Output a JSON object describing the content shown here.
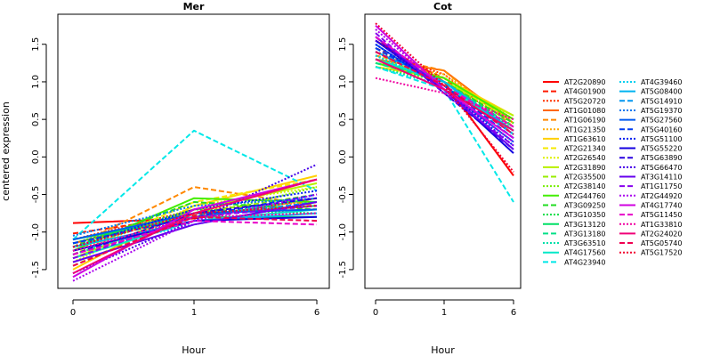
{
  "chart_data": [
    {
      "type": "line",
      "title": "Mer",
      "xlabel": "Hour",
      "ylabel": "centered expression",
      "categories": [
        "0",
        "1",
        "6"
      ],
      "ylim": [
        -1.75,
        1.9
      ],
      "yticks": [
        "-1.5",
        "-1.0",
        "-0.5",
        "0.0",
        "0.5",
        "1.0",
        "1.5"
      ],
      "series": [
        {
          "name": "AT2G20890",
          "values": [
            -0.88,
            -0.82,
            -0.55
          ],
          "color": "#FF0000",
          "dash": "solid"
        },
        {
          "name": "AT4G01900",
          "values": [
            -1.02,
            -0.78,
            -0.65
          ],
          "color": "#FF1A00",
          "dash": "dashed"
        },
        {
          "name": "AT5G20720",
          "values": [
            -1.1,
            -0.7,
            -0.6
          ],
          "color": "#FF3300",
          "dash": "dotted"
        },
        {
          "name": "AT1G01080",
          "values": [
            -1.15,
            -0.75,
            -0.7
          ],
          "color": "#FF6600",
          "dash": "solid"
        },
        {
          "name": "AT1G06190",
          "values": [
            -1.2,
            -0.4,
            -0.65
          ],
          "color": "#FF8800",
          "dash": "dashed"
        },
        {
          "name": "AT1G21350",
          "values": [
            -1.25,
            -0.7,
            -0.6
          ],
          "color": "#FFAA00",
          "dash": "dotted"
        },
        {
          "name": "AT1G63610",
          "values": [
            -1.5,
            -0.65,
            -0.25
          ],
          "color": "#FFD000",
          "dash": "solid"
        },
        {
          "name": "AT2G21340",
          "values": [
            -1.3,
            -0.6,
            -0.3
          ],
          "color": "#F5E800",
          "dash": "dashed"
        },
        {
          "name": "AT2G26540",
          "values": [
            -1.4,
            -0.65,
            -0.4
          ],
          "color": "#DDF000",
          "dash": "dotted"
        },
        {
          "name": "AT2G31890",
          "values": [
            -1.35,
            -0.7,
            -0.35
          ],
          "color": "#B8F000",
          "dash": "solid"
        },
        {
          "name": "AT2G35500",
          "values": [
            -1.45,
            -0.75,
            -0.5
          ],
          "color": "#99EE00",
          "dash": "dashed"
        },
        {
          "name": "AT2G38140",
          "values": [
            -1.3,
            -0.8,
            -0.4
          ],
          "color": "#77EE00",
          "dash": "dotted"
        },
        {
          "name": "AT2G44760",
          "values": [
            -1.25,
            -0.55,
            -0.6
          ],
          "color": "#44EE00",
          "dash": "solid"
        },
        {
          "name": "AT3G09250",
          "values": [
            -1.2,
            -0.6,
            -0.7
          ],
          "color": "#22DD22",
          "dash": "dashed"
        },
        {
          "name": "AT3G10350",
          "values": [
            -1.15,
            -0.7,
            -0.75
          ],
          "color": "#11DD44",
          "dash": "dotted"
        },
        {
          "name": "AT3G13120",
          "values": [
            -1.1,
            -0.8,
            -0.8
          ],
          "color": "#00E066",
          "dash": "solid"
        },
        {
          "name": "AT3G13180",
          "values": [
            -1.2,
            -0.75,
            -0.65
          ],
          "color": "#00E088",
          "dash": "dashed"
        },
        {
          "name": "AT3G63510",
          "values": [
            -1.3,
            -0.8,
            -0.55
          ],
          "color": "#00E0AA",
          "dash": "dotted"
        },
        {
          "name": "AT4G17560",
          "values": [
            -1.35,
            -0.85,
            -0.7
          ],
          "color": "#00E8C8",
          "dash": "solid"
        },
        {
          "name": "AT4G23940",
          "values": [
            -1.1,
            0.35,
            -0.45
          ],
          "color": "#00E8E8",
          "dash": "dashed"
        },
        {
          "name": "AT4G39460",
          "values": [
            -1.25,
            -0.9,
            -0.6
          ],
          "color": "#00D0F0",
          "dash": "dotted"
        },
        {
          "name": "AT5G08400",
          "values": [
            -1.2,
            -0.85,
            -0.75
          ],
          "color": "#00B4F0",
          "dash": "solid"
        },
        {
          "name": "AT5G14910",
          "values": [
            -1.15,
            -0.8,
            -0.6
          ],
          "color": "#0096F0",
          "dash": "dashed"
        },
        {
          "name": "AT5G19370",
          "values": [
            -1.05,
            -0.65,
            -0.55
          ],
          "color": "#0078F0",
          "dash": "dotted"
        },
        {
          "name": "AT5G27560",
          "values": [
            -1.1,
            -0.75,
            -0.7
          ],
          "color": "#005AF0",
          "dash": "solid"
        },
        {
          "name": "AT5G40160",
          "values": [
            -1.15,
            -0.8,
            -0.5
          ],
          "color": "#003CF0",
          "dash": "dashed"
        },
        {
          "name": "AT5G51100",
          "values": [
            -1.2,
            -0.7,
            -0.45
          ],
          "color": "#0020F0",
          "dash": "dotted"
        },
        {
          "name": "AT5G55220",
          "values": [
            -1.25,
            -0.85,
            -0.8
          ],
          "color": "#1400E0",
          "dash": "solid"
        },
        {
          "name": "AT5G63890",
          "values": [
            -1.3,
            -0.75,
            -0.55
          ],
          "color": "#2800E0",
          "dash": "dashed"
        },
        {
          "name": "AT5G66470",
          "values": [
            -1.55,
            -0.85,
            -0.1
          ],
          "color": "#4400E8",
          "dash": "dotted"
        },
        {
          "name": "AT3G14110",
          "values": [
            -1.4,
            -0.9,
            -0.6
          ],
          "color": "#6600EE",
          "dash": "solid"
        },
        {
          "name": "AT1G11750",
          "values": [
            -1.35,
            -0.8,
            -0.65
          ],
          "color": "#8800EE",
          "dash": "dashed"
        },
        {
          "name": "AT2G44920",
          "values": [
            -1.65,
            -0.85,
            -0.5
          ],
          "color": "#AA00EE",
          "dash": "dotted"
        },
        {
          "name": "AT4G17740",
          "values": [
            -1.6,
            -0.7,
            -0.3
          ],
          "color": "#D000E0",
          "dash": "solid"
        },
        {
          "name": "AT5G11450",
          "values": [
            -1.3,
            -0.85,
            -0.9
          ],
          "color": "#E800C8",
          "dash": "dashed"
        },
        {
          "name": "AT1G33810",
          "values": [
            -1.25,
            -0.8,
            -0.75
          ],
          "color": "#F000A0",
          "dash": "dotted"
        },
        {
          "name": "AT2G24020",
          "values": [
            -1.55,
            -0.75,
            -0.3
          ],
          "color": "#F00078",
          "dash": "solid"
        },
        {
          "name": "AT5G05740",
          "values": [
            -1.45,
            -0.8,
            -0.85
          ],
          "color": "#F00050",
          "dash": "dashed"
        },
        {
          "name": "AT5G17520",
          "values": [
            -1.2,
            -0.75,
            -0.65
          ],
          "color": "#F00030",
          "dash": "dotted"
        }
      ]
    },
    {
      "type": "line",
      "title": "Cot",
      "xlabel": "Hour",
      "ylabel": "",
      "categories": [
        "0",
        "1",
        "6"
      ],
      "ylim": [
        -1.75,
        1.9
      ],
      "yticks": [
        "-1.5",
        "-1.0",
        "-0.5",
        "0.0",
        "0.5",
        "1.0",
        "1.5"
      ],
      "series": [
        {
          "name": "AT2G20890",
          "values": [
            1.55,
            1.0,
            -0.25
          ],
          "color": "#FF0000",
          "dash": "solid"
        },
        {
          "name": "AT4G01900",
          "values": [
            1.45,
            1.05,
            0.3
          ],
          "color": "#FF1A00",
          "dash": "dashed"
        },
        {
          "name": "AT5G20720",
          "values": [
            1.4,
            1.1,
            0.35
          ],
          "color": "#FF3300",
          "dash": "dotted"
        },
        {
          "name": "AT1G01080",
          "values": [
            1.3,
            1.15,
            0.45
          ],
          "color": "#FF6600",
          "dash": "solid"
        },
        {
          "name": "AT1G06190",
          "values": [
            1.35,
            1.15,
            0.4
          ],
          "color": "#FF8800",
          "dash": "dashed"
        },
        {
          "name": "AT1G21350",
          "values": [
            1.25,
            1.1,
            0.5
          ],
          "color": "#FFAA00",
          "dash": "dotted"
        },
        {
          "name": "AT1G63610",
          "values": [
            1.2,
            1.05,
            0.55
          ],
          "color": "#FFD000",
          "dash": "solid"
        },
        {
          "name": "AT2G21340",
          "values": [
            1.3,
            1.0,
            0.5
          ],
          "color": "#F5E800",
          "dash": "dashed"
        },
        {
          "name": "AT2G26540",
          "values": [
            1.35,
            1.05,
            0.45
          ],
          "color": "#DDF000",
          "dash": "dotted"
        },
        {
          "name": "AT2G31890",
          "values": [
            1.25,
            1.0,
            0.55
          ],
          "color": "#B8F000",
          "dash": "solid"
        },
        {
          "name": "AT2G35500",
          "values": [
            1.3,
            1.05,
            0.5
          ],
          "color": "#99EE00",
          "dash": "dashed"
        },
        {
          "name": "AT2G38140",
          "values": [
            1.2,
            1.0,
            0.45
          ],
          "color": "#77EE00",
          "dash": "dotted"
        },
        {
          "name": "AT2G44760",
          "values": [
            1.25,
            1.05,
            0.5
          ],
          "color": "#44EE00",
          "dash": "solid"
        },
        {
          "name": "AT3G09250",
          "values": [
            1.3,
            1.0,
            0.45
          ],
          "color": "#22DD22",
          "dash": "dashed"
        },
        {
          "name": "AT3G10350",
          "values": [
            1.35,
            0.95,
            0.4
          ],
          "color": "#11DD44",
          "dash": "dotted"
        },
        {
          "name": "AT3G13120",
          "values": [
            1.3,
            1.0,
            0.35
          ],
          "color": "#00E066",
          "dash": "solid"
        },
        {
          "name": "AT3G13180",
          "values": [
            1.25,
            1.0,
            0.4
          ],
          "color": "#00E088",
          "dash": "dashed"
        },
        {
          "name": "AT3G63510",
          "values": [
            1.2,
            0.95,
            0.35
          ],
          "color": "#00E0AA",
          "dash": "dotted"
        },
        {
          "name": "AT4G17560",
          "values": [
            1.3,
            1.0,
            0.3
          ],
          "color": "#00E8C8",
          "dash": "solid"
        },
        {
          "name": "AT4G23940",
          "values": [
            1.2,
            0.9,
            -0.6
          ],
          "color": "#00E8E8",
          "dash": "dashed"
        },
        {
          "name": "AT4G39460",
          "values": [
            1.35,
            0.95,
            0.3
          ],
          "color": "#00D0F0",
          "dash": "dotted"
        },
        {
          "name": "AT5G08400",
          "values": [
            1.4,
            1.0,
            0.35
          ],
          "color": "#00B4F0",
          "dash": "solid"
        },
        {
          "name": "AT5G14910",
          "values": [
            1.45,
            0.95,
            0.25
          ],
          "color": "#0096F0",
          "dash": "dashed"
        },
        {
          "name": "AT5G19370",
          "values": [
            1.4,
            0.95,
            0.3
          ],
          "color": "#0078F0",
          "dash": "dotted"
        },
        {
          "name": "AT5G27560",
          "values": [
            1.5,
            0.9,
            0.2
          ],
          "color": "#005AF0",
          "dash": "solid"
        },
        {
          "name": "AT5G40160",
          "values": [
            1.45,
            0.95,
            0.25
          ],
          "color": "#003CF0",
          "dash": "dashed"
        },
        {
          "name": "AT5G51100",
          "values": [
            1.5,
            0.9,
            0.15
          ],
          "color": "#0020F0",
          "dash": "dotted"
        },
        {
          "name": "AT5G55220",
          "values": [
            1.55,
            0.9,
            0.05
          ],
          "color": "#1400E0",
          "dash": "solid"
        },
        {
          "name": "AT5G63890",
          "values": [
            1.6,
            0.85,
            0.1
          ],
          "color": "#2800E0",
          "dash": "dashed"
        },
        {
          "name": "AT5G66470",
          "values": [
            1.55,
            0.9,
            0.2
          ],
          "color": "#4400E8",
          "dash": "dotted"
        },
        {
          "name": "AT3G14110",
          "values": [
            1.6,
            0.9,
            0.1
          ],
          "color": "#6600EE",
          "dash": "solid"
        },
        {
          "name": "AT1G11750",
          "values": [
            1.65,
            0.85,
            0.15
          ],
          "color": "#8800EE",
          "dash": "dashed"
        },
        {
          "name": "AT2G44920",
          "values": [
            1.7,
            0.9,
            0.2
          ],
          "color": "#AA00EE",
          "dash": "dotted"
        },
        {
          "name": "AT4G17740",
          "values": [
            1.75,
            0.9,
            0.25
          ],
          "color": "#D000E0",
          "dash": "solid"
        },
        {
          "name": "AT5G11450",
          "values": [
            1.6,
            0.95,
            0.4
          ],
          "color": "#E800C8",
          "dash": "dashed"
        },
        {
          "name": "AT1G33810",
          "values": [
            1.05,
            0.85,
            0.5
          ],
          "color": "#F000A0",
          "dash": "dotted"
        },
        {
          "name": "AT2G24020",
          "values": [
            1.3,
            0.9,
            0.35
          ],
          "color": "#F00078",
          "dash": "solid"
        },
        {
          "name": "AT5G05740",
          "values": [
            1.4,
            0.95,
            0.3
          ],
          "color": "#F00050",
          "dash": "dashed"
        },
        {
          "name": "AT5G17520",
          "values": [
            1.78,
            0.95,
            -0.2
          ],
          "color": "#F00030",
          "dash": "dotted"
        }
      ]
    }
  ]
}
